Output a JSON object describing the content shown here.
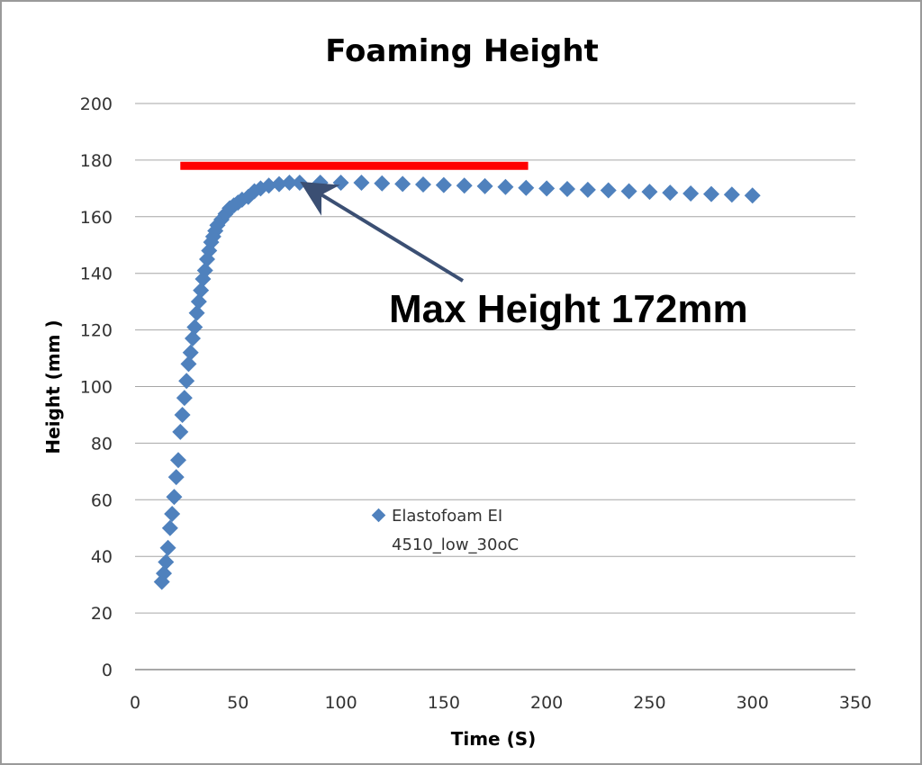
{
  "chart_data": {
    "type": "scatter",
    "title": "Foaming Height",
    "xlabel": "Time (S)",
    "ylabel": "Height (mm )",
    "xlim": [
      0,
      350
    ],
    "ylim": [
      0,
      200
    ],
    "xticks": [
      0,
      50,
      100,
      150,
      200,
      250,
      300,
      350
    ],
    "yticks": [
      0,
      20,
      40,
      60,
      80,
      100,
      120,
      140,
      160,
      180,
      200
    ],
    "grid": "horizontal",
    "legend": {
      "placement": "center",
      "line1": "Elastofoam EI",
      "line2": "4510_low_30oC"
    },
    "series": [
      {
        "name": "Elastofoam EI 4510_low_30oC",
        "color": "#4f81bd",
        "marker": "diamond",
        "points": [
          [
            13,
            31
          ],
          [
            14,
            34
          ],
          [
            15,
            38
          ],
          [
            16,
            43
          ],
          [
            17,
            50
          ],
          [
            18,
            55
          ],
          [
            19,
            61
          ],
          [
            20,
            68
          ],
          [
            21,
            74
          ],
          [
            22,
            84
          ],
          [
            23,
            90
          ],
          [
            24,
            96
          ],
          [
            25,
            102
          ],
          [
            26,
            108
          ],
          [
            27,
            112
          ],
          [
            28,
            117
          ],
          [
            29,
            121
          ],
          [
            30,
            126
          ],
          [
            31,
            130
          ],
          [
            32,
            134
          ],
          [
            33,
            138
          ],
          [
            34,
            141
          ],
          [
            35,
            145
          ],
          [
            36,
            148
          ],
          [
            37,
            151
          ],
          [
            38,
            153
          ],
          [
            39,
            155
          ],
          [
            40,
            157
          ],
          [
            42,
            159
          ],
          [
            44,
            161
          ],
          [
            46,
            163
          ],
          [
            48,
            164
          ],
          [
            50,
            165
          ],
          [
            52,
            166
          ],
          [
            55,
            167
          ],
          [
            58,
            169
          ],
          [
            61,
            170
          ],
          [
            65,
            171
          ],
          [
            70,
            171.5
          ],
          [
            75,
            172
          ],
          [
            80,
            172
          ],
          [
            90,
            172
          ],
          [
            100,
            172
          ],
          [
            110,
            172
          ],
          [
            120,
            171.8
          ],
          [
            130,
            171.6
          ],
          [
            140,
            171.4
          ],
          [
            150,
            171.2
          ],
          [
            160,
            171
          ],
          [
            170,
            170.8
          ],
          [
            180,
            170.5
          ],
          [
            190,
            170.2
          ],
          [
            200,
            170
          ],
          [
            210,
            169.8
          ],
          [
            220,
            169.5
          ],
          [
            230,
            169.3
          ],
          [
            240,
            169
          ],
          [
            250,
            168.8
          ],
          [
            260,
            168.5
          ],
          [
            270,
            168.2
          ],
          [
            280,
            168
          ],
          [
            290,
            167.8
          ],
          [
            300,
            167.5
          ]
        ]
      }
    ],
    "reference_line": {
      "y": 178,
      "x_start": 22,
      "x_end": 191,
      "color": "#ff0000"
    },
    "annotation": {
      "text": "Max Height 172mm",
      "arrow_to": [
        82,
        172
      ],
      "arrow_color": "#3b4f73"
    }
  }
}
